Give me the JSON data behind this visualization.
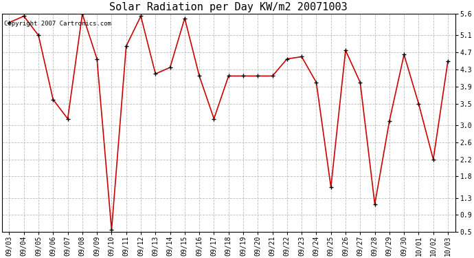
{
  "title": "Solar Radiation per Day KW/m2 20071003",
  "copyright_text": "Copyright 2007 Cartronics.com",
  "dates": [
    "09/03",
    "09/04",
    "09/05",
    "09/06",
    "09/07",
    "09/08",
    "09/09",
    "09/10",
    "09/11",
    "09/12",
    "09/13",
    "09/14",
    "09/15",
    "09/16",
    "09/17",
    "09/18",
    "09/19",
    "09/20",
    "09/21",
    "09/22",
    "09/23",
    "09/24",
    "09/25",
    "09/26",
    "09/27",
    "09/28",
    "09/29",
    "09/30",
    "10/01",
    "10/02",
    "10/03"
  ],
  "values": [
    5.4,
    5.55,
    5.1,
    3.6,
    3.15,
    5.6,
    4.55,
    0.55,
    4.85,
    5.55,
    4.2,
    4.35,
    5.5,
    4.15,
    3.15,
    4.15,
    4.15,
    4.15,
    4.15,
    4.55,
    4.6,
    4.0,
    1.55,
    4.75,
    4.0,
    1.15,
    3.1,
    4.65,
    3.5,
    2.2,
    4.5
  ],
  "line_color": "#cc0000",
  "marker_color": "#000000",
  "bg_color": "#ffffff",
  "plot_bg_color": "#ffffff",
  "grid_color": "#bbbbbb",
  "ylim": [
    0.5,
    5.6
  ],
  "yticks": [
    0.5,
    0.9,
    1.3,
    1.8,
    2.2,
    2.6,
    3.0,
    3.5,
    3.9,
    4.3,
    4.7,
    5.1,
    5.6
  ],
  "title_fontsize": 11,
  "tick_fontsize": 7,
  "copyright_fontsize": 6.5
}
